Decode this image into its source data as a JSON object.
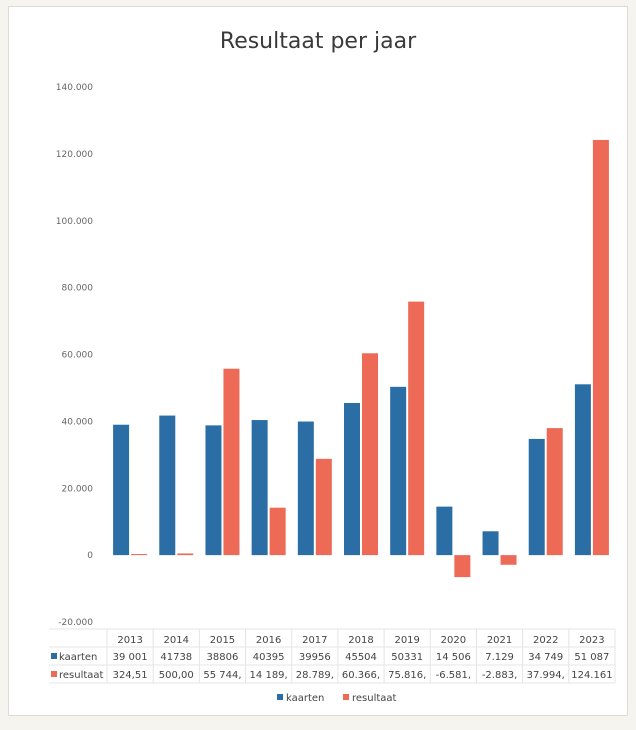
{
  "chart_data": {
    "type": "bar",
    "title": "Resultaat per jaar",
    "categories": [
      "2013",
      "2014",
      "2015",
      "2016",
      "2017",
      "2018",
      "2019",
      "2020",
      "2021",
      "2022",
      "2023"
    ],
    "series": [
      {
        "name": "kaarten",
        "color": "#2b6ea6",
        "values": [
          39001,
          41738,
          38806,
          40395,
          39956,
          45504,
          50331,
          14506,
          7129,
          34749,
          51087
        ],
        "labels": [
          "39 001",
          "41738",
          "38806",
          "40395",
          "39956",
          "45504",
          "50331",
          "14 506",
          "7.129",
          "34 749",
          "51 087"
        ]
      },
      {
        "name": "resultaat",
        "color": "#ec6a56",
        "values": [
          324.51,
          500,
          55744,
          14189,
          28789,
          60366,
          75816,
          -6581,
          -2883,
          37994,
          124161
        ],
        "labels": [
          "324,51",
          "500,00",
          "55 744,",
          "14 189,",
          "28.789,",
          "60.366,",
          "75.816,",
          "-6.581,",
          "-2.883,",
          "37.994,",
          "124.161"
        ]
      }
    ],
    "ylim": [
      -20000,
      140000
    ],
    "yticks": [
      -20000,
      0,
      20000,
      40000,
      60000,
      80000,
      100000,
      120000,
      140000
    ],
    "ytick_labels": [
      "-20.000",
      "0",
      "20.000",
      "40.000",
      "60.000",
      "80.000",
      "100.000",
      "120.000",
      "140.000"
    ],
    "legend_position": "bottom-center",
    "data_table": true
  }
}
